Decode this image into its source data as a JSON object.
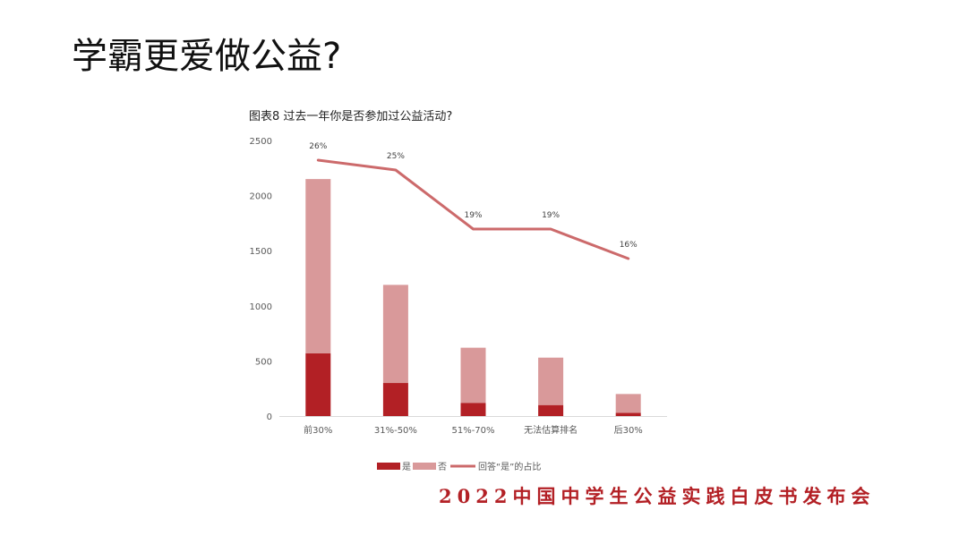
{
  "slide": {
    "title": "学霸更爱做公益?"
  },
  "footer": {
    "text": "2022中国中学生公益实践白皮书发布会"
  },
  "colors": {
    "yes": "#b22025",
    "no": "#d9999a",
    "line": "#cc6a6b",
    "footer": "#b32025"
  },
  "chart_data": {
    "type": "bar",
    "stacked": true,
    "title": "图表8  过去一年你是否参加过公益活动?",
    "categories": [
      "前30%",
      "31%-50%",
      "51%-70%",
      "无法估算排名",
      "后30%"
    ],
    "series": [
      {
        "name": "是",
        "type": "bar",
        "values": [
          570,
          300,
          120,
          100,
          30
        ]
      },
      {
        "name": "否",
        "type": "bar",
        "values": [
          1580,
          890,
          500,
          430,
          170
        ]
      },
      {
        "name": "回答“是”的占比",
        "type": "line",
        "values": [
          26,
          25,
          19,
          19,
          16
        ],
        "labels": [
          "26%",
          "25%",
          "19%",
          "19%",
          "16%"
        ]
      }
    ],
    "ylim": [
      0,
      2500
    ],
    "yticks": [
      "0",
      "500",
      "1000",
      "1500",
      "2000",
      "2500"
    ],
    "ytick_values": [
      0,
      500,
      1000,
      1500,
      2000,
      2500
    ],
    "line_axis_range": [
      0,
      28
    ],
    "grid": false,
    "legend_position": "bottom"
  }
}
